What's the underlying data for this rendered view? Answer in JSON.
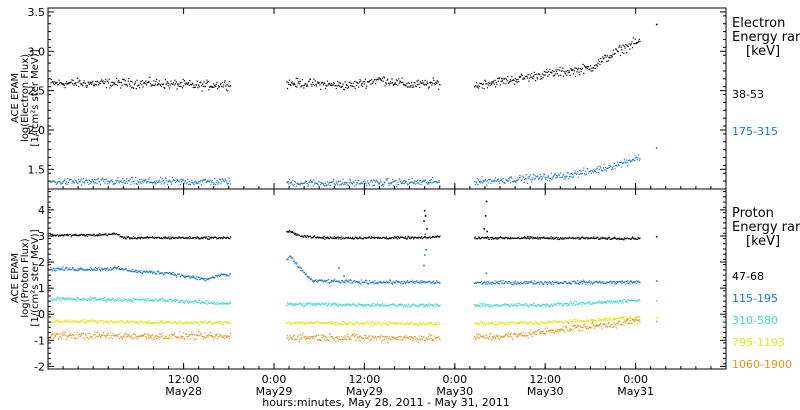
{
  "chart_data": [
    {
      "type": "scatter",
      "panel": "electron",
      "ylabel": [
        "ACE EPAM",
        "log(Electron Flux)",
        "[1/(cm²s ster MeV)]"
      ],
      "ylim": [
        1.25,
        3.55
      ],
      "yticks": [
        1.5,
        2.0,
        2.5,
        3.0,
        3.5
      ],
      "ytick_labels": [
        "1.5",
        "2.0",
        "2.5",
        "3.0",
        "3.5"
      ],
      "legend_title": [
        "Electron",
        "Energy ranges",
        "[keV]"
      ],
      "series": [
        {
          "name": "38-53",
          "color": "#000000",
          "noise": 0.05,
          "knots": [
            [
              0,
              2.6
            ],
            [
              8,
              2.6
            ],
            [
              14,
              2.57
            ],
            [
              20,
              2.6
            ],
            [
              28,
              2.6
            ],
            [
              34,
              2.57
            ],
            [
              38,
              2.65
            ],
            [
              42,
              2.58
            ],
            [
              46,
              2.6
            ],
            [
              50,
              2.55
            ],
            [
              52,
              2.6
            ],
            [
              56,
              2.65
            ],
            [
              60,
              2.72
            ],
            [
              64,
              2.76
            ],
            [
              66,
              2.8
            ],
            [
              68,
              2.92
            ],
            [
              70,
              3.03
            ],
            [
              72,
              3.12
            ]
          ],
          "extra_points": [
            [
              74.7,
              3.35
            ]
          ]
        },
        {
          "name": "175-315",
          "color": "#1a78c8",
          "noise": 0.04,
          "knots": [
            [
              0,
              1.35
            ],
            [
              20,
              1.35
            ],
            [
              30,
              1.33
            ],
            [
              50,
              1.35
            ],
            [
              56,
              1.38
            ],
            [
              62,
              1.42
            ],
            [
              66,
              1.48
            ],
            [
              70,
              1.58
            ],
            [
              72,
              1.65
            ]
          ],
          "extra_points": [
            [
              74.7,
              1.78
            ]
          ]
        }
      ]
    },
    {
      "type": "scatter",
      "panel": "proton",
      "ylabel": [
        "ACE EPAM",
        "log(Proton Flux)",
        "[1/(cm²s ster MeV)]"
      ],
      "ylim": [
        -2.1,
        4.8
      ],
      "yticks": [
        -2,
        -1,
        0,
        1,
        2,
        3,
        4
      ],
      "ytick_labels": [
        "-2",
        "-1",
        "0",
        "1",
        "2",
        "3",
        "4"
      ],
      "legend_title": [
        "Proton",
        "Energy ranges",
        "[keV]"
      ],
      "series": [
        {
          "name": "47-68",
          "color": "#000000",
          "noise": 0.04,
          "knots": [
            [
              0,
              3.05
            ],
            [
              3,
              3.1
            ],
            [
              4,
              2.95
            ],
            [
              20,
              2.95
            ],
            [
              26,
              3.2
            ],
            [
              27,
              3.05
            ],
            [
              30,
              2.95
            ],
            [
              44,
              2.95
            ],
            [
              46,
              3.0
            ],
            [
              48,
              2.95
            ],
            [
              72,
              2.93
            ]
          ],
          "extra_points": [
            [
              43.8,
              3.6
            ],
            [
              43.9,
              4.0
            ],
            [
              44.0,
              3.8
            ],
            [
              44.2,
              3.3
            ],
            [
              51.8,
              3.3
            ],
            [
              52.0,
              3.8
            ],
            [
              52.1,
              4.35
            ],
            [
              52.2,
              3.2
            ],
            [
              74.7,
              3.0
            ]
          ]
        },
        {
          "name": "115-195",
          "color": "#1a78c8",
          "noise": 0.06,
          "knots": [
            [
              0,
              1.75
            ],
            [
              3,
              1.78
            ],
            [
              6,
              1.65
            ],
            [
              10,
              1.6
            ],
            [
              12,
              1.48
            ],
            [
              15,
              1.35
            ],
            [
              17,
              1.55
            ],
            [
              20,
              1.4
            ],
            [
              24,
              1.35
            ],
            [
              26,
              2.25
            ],
            [
              27,
              1.9
            ],
            [
              29,
              1.3
            ],
            [
              36,
              1.25
            ],
            [
              44,
              1.25
            ],
            [
              48,
              1.22
            ],
            [
              72,
              1.25
            ]
          ],
          "extra_points": [
            [
              43.8,
              1.9
            ],
            [
              43.9,
              2.3
            ],
            [
              44.0,
              3.1
            ],
            [
              44.1,
              2.5
            ],
            [
              52.1,
              1.6
            ],
            [
              32.5,
              1.8
            ],
            [
              33.2,
              1.5
            ],
            [
              74.7,
              1.3
            ]
          ]
        },
        {
          "name": "310-580",
          "color": "#3ed8c8",
          "noise": 0.06,
          "knots": [
            [
              0,
              0.6
            ],
            [
              10,
              0.55
            ],
            [
              16,
              0.45
            ],
            [
              24,
              0.4
            ],
            [
              30,
              0.4
            ],
            [
              48,
              0.35
            ],
            [
              60,
              0.38
            ],
            [
              66,
              0.45
            ],
            [
              72,
              0.55
            ]
          ],
          "extra_points": [
            [
              74.7,
              0.55
            ]
          ]
        },
        {
          "name": "795-1193",
          "color": "#e4e41a",
          "noise": 0.06,
          "knots": [
            [
              0,
              -0.25
            ],
            [
              10,
              -0.3
            ],
            [
              24,
              -0.3
            ],
            [
              48,
              -0.35
            ],
            [
              60,
              -0.3
            ],
            [
              66,
              -0.22
            ],
            [
              72,
              -0.1
            ]
          ],
          "extra_points": [
            [
              74.7,
              -0.1
            ]
          ]
        },
        {
          "name": "1060-1900",
          "color": "#e8901a",
          "noise": 0.12,
          "knots": [
            [
              0,
              -0.8
            ],
            [
              10,
              -0.82
            ],
            [
              24,
              -0.85
            ],
            [
              48,
              -0.9
            ],
            [
              56,
              -0.8
            ],
            [
              62,
              -0.55
            ],
            [
              66,
              -0.45
            ],
            [
              72,
              -0.25
            ]
          ],
          "extra_points": [
            [
              74.7,
              -0.25
            ]
          ]
        }
      ]
    }
  ],
  "x_axis": {
    "xlabel": "hours:minutes, May 28, 2011 - May 31, 2011",
    "range_hours": [
      -6,
      84
    ],
    "gaps_hours": [
      [
        18.2,
        25.6
      ],
      [
        46.0,
        50.5
      ],
      [
        72.6,
        74.3
      ]
    ],
    "ticks": [
      {
        "hour": 12,
        "line1": "12:00",
        "line2": "May28"
      },
      {
        "hour": 24,
        "line1": "0:00",
        "line2": "May29"
      },
      {
        "hour": 36,
        "line1": "12:00",
        "line2": "May29"
      },
      {
        "hour": 48,
        "line1": "0:00",
        "line2": "May30"
      },
      {
        "hour": 60,
        "line1": "12:00",
        "line2": "May30"
      },
      {
        "hour": 72,
        "line1": "0:00",
        "line2": "May31"
      }
    ]
  }
}
